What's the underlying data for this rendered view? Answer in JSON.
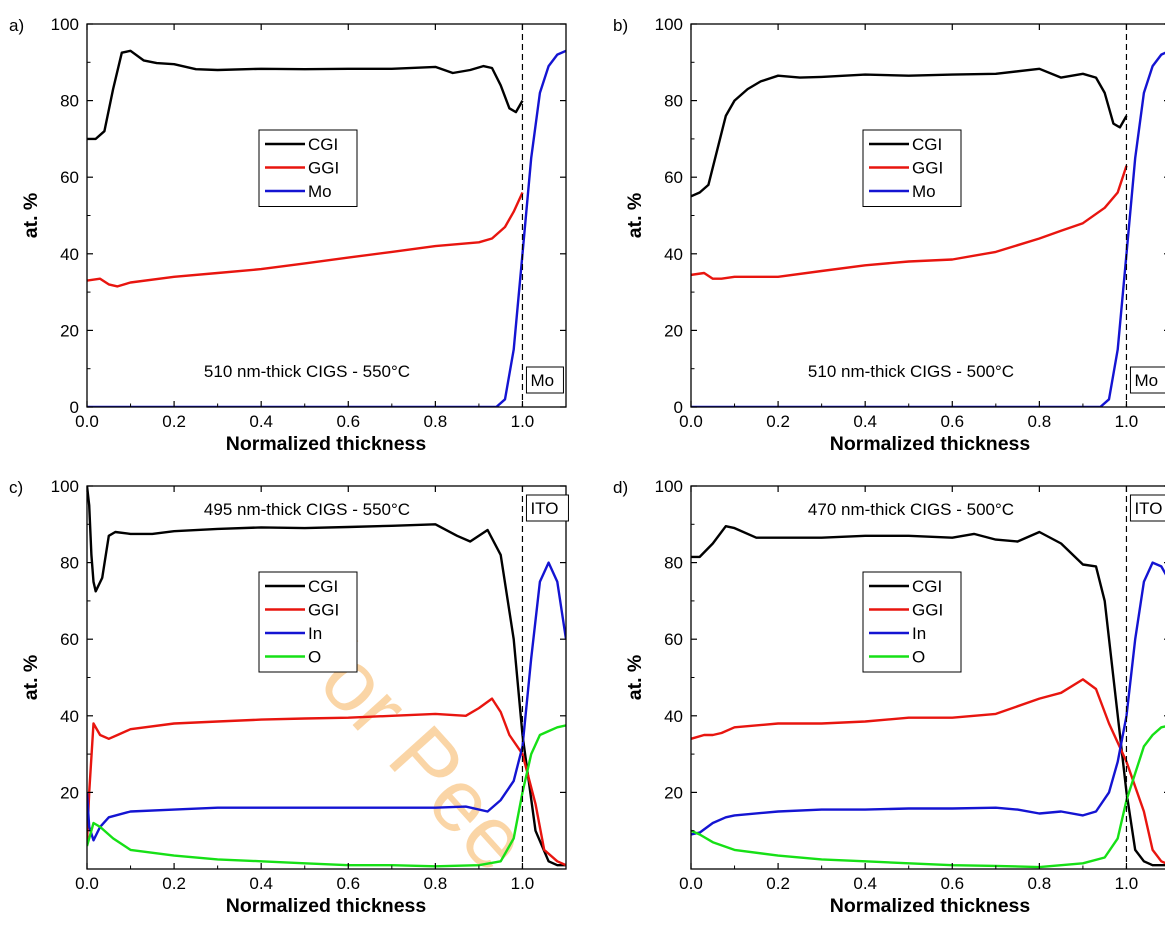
{
  "watermark": "For Pee",
  "colors": {
    "CGI": "#000000",
    "GGI": "#e8150f",
    "Mo": "#1414d2",
    "In": "#1414d2",
    "O": "#16e016"
  },
  "chart_data": [
    {
      "type": "line",
      "panel_label": "a)",
      "xlabel": "Normalized thickness",
      "ylabel": "at. %",
      "xlim": [
        0,
        1.1
      ],
      "ylim": [
        0,
        100
      ],
      "xticks": [
        "0.0",
        "0.2",
        "0.4",
        "0.6",
        "0.8",
        "1.0"
      ],
      "yticks": [
        "0",
        "20",
        "40",
        "60",
        "80",
        "100"
      ],
      "annotation": "510 nm-thick CIGS - 550°C",
      "boxed_label": "Mo",
      "boxed_position": "bottom",
      "legend": [
        "CGI",
        "GGI",
        "Mo"
      ],
      "dashed_x": 1.0,
      "series": [
        {
          "name": "CGI",
          "color": "#000000",
          "x": [
            0,
            0.02,
            0.04,
            0.06,
            0.08,
            0.1,
            0.13,
            0.16,
            0.2,
            0.25,
            0.3,
            0.4,
            0.5,
            0.6,
            0.7,
            0.8,
            0.84,
            0.88,
            0.91,
            0.93,
            0.95,
            0.97,
            0.985,
            1.0
          ],
          "y": [
            70,
            70,
            72,
            83,
            92.5,
            93,
            90.5,
            89.8,
            89.5,
            88.2,
            88,
            88.3,
            88.2,
            88.3,
            88.3,
            88.8,
            87.2,
            88,
            89,
            88.5,
            84,
            78,
            77,
            80
          ]
        },
        {
          "name": "GGI",
          "color": "#e8150f",
          "x": [
            0,
            0.03,
            0.05,
            0.07,
            0.1,
            0.2,
            0.3,
            0.4,
            0.5,
            0.6,
            0.7,
            0.8,
            0.9,
            0.93,
            0.96,
            0.98,
            1.0
          ],
          "y": [
            33,
            33.5,
            32,
            31.5,
            32.5,
            34,
            35,
            36,
            37.5,
            39,
            40.5,
            42,
            43,
            44,
            47,
            51,
            56
          ]
        },
        {
          "name": "Mo",
          "color": "#1414d2",
          "x": [
            0,
            0.94,
            0.96,
            0.98,
            1.0,
            1.02,
            1.04,
            1.06,
            1.08,
            1.1
          ],
          "y": [
            0,
            0,
            2,
            15,
            40,
            65,
            82,
            89,
            92,
            93
          ]
        }
      ]
    },
    {
      "type": "line",
      "panel_label": "b)",
      "xlabel": "Normalized thickness",
      "ylabel": "at. %",
      "xlim": [
        0,
        1.1
      ],
      "ylim": [
        0,
        100
      ],
      "xticks": [
        "0.0",
        "0.2",
        "0.4",
        "0.6",
        "0.8",
        "1.0"
      ],
      "yticks": [
        "0",
        "20",
        "40",
        "60",
        "80",
        "100"
      ],
      "annotation": "510 nm-thick CIGS - 500°C",
      "boxed_label": "Mo",
      "boxed_position": "bottom",
      "legend": [
        "CGI",
        "GGI",
        "Mo"
      ],
      "dashed_x": 1.0,
      "series": [
        {
          "name": "CGI",
          "color": "#000000",
          "x": [
            0,
            0.02,
            0.04,
            0.06,
            0.08,
            0.1,
            0.13,
            0.16,
            0.2,
            0.25,
            0.3,
            0.4,
            0.5,
            0.6,
            0.7,
            0.8,
            0.85,
            0.9,
            0.93,
            0.95,
            0.97,
            0.985,
            1.0
          ],
          "y": [
            55,
            56,
            58,
            67,
            76,
            80,
            83,
            85,
            86.5,
            86,
            86.2,
            86.8,
            86.5,
            86.8,
            87,
            88.3,
            86,
            87,
            86,
            82,
            74,
            73,
            76
          ]
        },
        {
          "name": "GGI",
          "color": "#e8150f",
          "x": [
            0,
            0.03,
            0.05,
            0.07,
            0.1,
            0.2,
            0.3,
            0.4,
            0.5,
            0.6,
            0.7,
            0.8,
            0.85,
            0.9,
            0.95,
            0.98,
            1.0
          ],
          "y": [
            34.5,
            35,
            33.5,
            33.5,
            34,
            34,
            35.5,
            37,
            38,
            38.5,
            40.5,
            44,
            46,
            48,
            52,
            56,
            63
          ]
        },
        {
          "name": "Mo",
          "color": "#1414d2",
          "x": [
            0,
            0.94,
            0.96,
            0.98,
            1.0,
            1.02,
            1.04,
            1.06,
            1.08,
            1.1
          ],
          "y": [
            0,
            0,
            2,
            15,
            40,
            65,
            82,
            89,
            92,
            93
          ]
        }
      ]
    },
    {
      "type": "line",
      "panel_label": "c)",
      "xlabel": "Normalized thickness",
      "ylabel": "at. %",
      "xlim": [
        0,
        1.1
      ],
      "ylim": [
        0,
        100
      ],
      "xticks": [
        "0.0",
        "0.2",
        "0.4",
        "0.6",
        "0.8",
        "1.0"
      ],
      "yticks": [
        "20",
        "40",
        "60",
        "80",
        "100"
      ],
      "annotation": "495 nm-thick CIGS - 550°C",
      "boxed_label": "ITO",
      "boxed_position": "top",
      "legend": [
        "CGI",
        "GGI",
        "In",
        "O"
      ],
      "dashed_x": 1.0,
      "series": [
        {
          "name": "CGI",
          "color": "#000000",
          "x": [
            0,
            0.005,
            0.01,
            0.015,
            0.02,
            0.035,
            0.05,
            0.065,
            0.1,
            0.15,
            0.2,
            0.3,
            0.4,
            0.5,
            0.6,
            0.7,
            0.8,
            0.85,
            0.88,
            0.92,
            0.95,
            0.98,
            1.0,
            1.03,
            1.06,
            1.08,
            1.1
          ],
          "y": [
            100,
            95,
            82,
            75,
            72.5,
            76,
            87,
            88,
            87.5,
            87.5,
            88.2,
            88.8,
            89.2,
            89,
            89.3,
            89.6,
            90,
            87,
            85.5,
            88.5,
            82,
            60,
            35,
            10,
            2,
            1,
            1
          ]
        },
        {
          "name": "GGI",
          "color": "#e8150f",
          "x": [
            0,
            0.005,
            0.015,
            0.03,
            0.05,
            0.07,
            0.1,
            0.2,
            0.3,
            0.4,
            0.5,
            0.6,
            0.7,
            0.8,
            0.87,
            0.9,
            0.93,
            0.95,
            0.97,
            1.0,
            1.03,
            1.05,
            1.08,
            1.1
          ],
          "y": [
            7,
            20,
            38,
            35,
            34,
            35,
            36.5,
            38,
            38.5,
            39,
            39.3,
            39.5,
            40,
            40.5,
            40,
            42,
            44.5,
            41,
            35,
            30,
            17,
            5,
            2,
            1
          ]
        },
        {
          "name": "In",
          "color": "#1414d2",
          "x": [
            0,
            0.005,
            0.015,
            0.03,
            0.05,
            0.1,
            0.2,
            0.3,
            0.4,
            0.5,
            0.6,
            0.7,
            0.8,
            0.87,
            0.92,
            0.95,
            0.98,
            1.0,
            1.02,
            1.04,
            1.06,
            1.08,
            1.1
          ],
          "y": [
            20,
            11,
            7.5,
            11,
            13.5,
            15,
            15.5,
            16,
            16,
            16,
            16,
            16,
            16,
            16.3,
            15,
            18,
            23,
            32,
            55,
            75,
            80,
            75,
            60
          ]
        },
        {
          "name": "O",
          "color": "#16e016",
          "x": [
            0,
            0.005,
            0.015,
            0.03,
            0.06,
            0.1,
            0.2,
            0.3,
            0.4,
            0.5,
            0.6,
            0.7,
            0.8,
            0.9,
            0.95,
            0.98,
            1.0,
            1.02,
            1.04,
            1.06,
            1.08,
            1.1
          ],
          "y": [
            6,
            8,
            12,
            11,
            8,
            5,
            3.5,
            2.5,
            2,
            1.5,
            1,
            1,
            0.7,
            1,
            2,
            8,
            20,
            30,
            35,
            36,
            37,
            37.5
          ]
        }
      ]
    },
    {
      "type": "line",
      "panel_label": "d)",
      "xlabel": "Normalized thickness",
      "ylabel": "at. %",
      "xlim": [
        0,
        1.1
      ],
      "ylim": [
        0,
        100
      ],
      "xticks": [
        "0.0",
        "0.2",
        "0.4",
        "0.6",
        "0.8",
        "1.0"
      ],
      "yticks": [
        "20",
        "40",
        "60",
        "80",
        "100"
      ],
      "annotation": "470 nm-thick CIGS - 500°C",
      "boxed_label": "ITO",
      "boxed_position": "top",
      "legend": [
        "CGI",
        "GGI",
        "In",
        "O"
      ],
      "dashed_x": 1.0,
      "series": [
        {
          "name": "CGI",
          "color": "#000000",
          "x": [
            0,
            0.02,
            0.05,
            0.08,
            0.1,
            0.15,
            0.2,
            0.3,
            0.4,
            0.5,
            0.6,
            0.65,
            0.7,
            0.75,
            0.8,
            0.85,
            0.9,
            0.93,
            0.95,
            0.97,
            1.0,
            1.02,
            1.04,
            1.06,
            1.08,
            1.1
          ],
          "y": [
            81.5,
            81.5,
            85,
            89.5,
            89,
            86.5,
            86.5,
            86.5,
            87,
            87,
            86.5,
            87.5,
            86,
            85.5,
            88,
            85,
            79.5,
            79,
            70,
            50,
            20,
            5,
            2,
            1,
            1,
            1
          ]
        },
        {
          "name": "GGI",
          "color": "#e8150f",
          "x": [
            0,
            0.03,
            0.05,
            0.07,
            0.1,
            0.2,
            0.3,
            0.4,
            0.5,
            0.6,
            0.7,
            0.8,
            0.85,
            0.9,
            0.93,
            0.96,
            1.0,
            1.04,
            1.06,
            1.08,
            1.1
          ],
          "y": [
            34,
            35,
            35,
            35.5,
            37,
            38,
            38,
            38.5,
            39.5,
            39.5,
            40.5,
            44.5,
            46,
            49.5,
            47,
            38,
            28,
            15,
            5,
            2,
            1
          ]
        },
        {
          "name": "In",
          "color": "#1414d2",
          "x": [
            0,
            0.02,
            0.05,
            0.08,
            0.1,
            0.2,
            0.3,
            0.4,
            0.5,
            0.6,
            0.7,
            0.75,
            0.8,
            0.85,
            0.9,
            0.93,
            0.96,
            0.98,
            1.0,
            1.02,
            1.04,
            1.06,
            1.08,
            1.1
          ],
          "y": [
            9,
            9.5,
            12,
            13.5,
            14,
            15,
            15.5,
            15.5,
            15.8,
            15.8,
            16,
            15.5,
            14.5,
            15,
            14,
            15,
            20,
            28,
            40,
            60,
            75,
            80,
            79,
            75
          ]
        },
        {
          "name": "O",
          "color": "#16e016",
          "x": [
            0,
            0.02,
            0.05,
            0.1,
            0.2,
            0.3,
            0.4,
            0.5,
            0.6,
            0.7,
            0.8,
            0.9,
            0.95,
            0.98,
            1.0,
            1.02,
            1.04,
            1.06,
            1.08,
            1.1
          ],
          "y": [
            10,
            9,
            7,
            5,
            3.5,
            2.5,
            2,
            1.5,
            1,
            0.8,
            0.5,
            1.5,
            3,
            8,
            18,
            25,
            32,
            35,
            37,
            37.5
          ]
        }
      ]
    }
  ]
}
